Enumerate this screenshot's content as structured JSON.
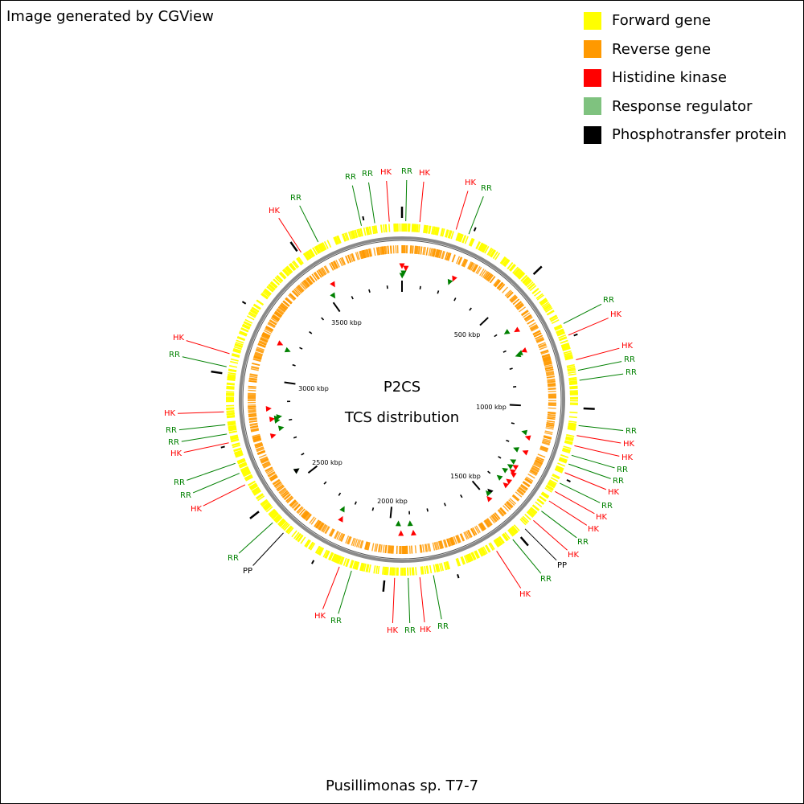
{
  "credit": "Image generated by CGView",
  "legend": [
    {
      "label": "Forward gene",
      "color": "#ffff00"
    },
    {
      "label": "Reverse gene",
      "color": "#ff9900"
    },
    {
      "label": "Histidine kinase",
      "color": "#ff0000"
    },
    {
      "label": "Response regulator",
      "color": "#7fc27f"
    },
    {
      "label": "Phosphotransfer protein",
      "color": "#000000"
    }
  ],
  "center": {
    "title": "P2CS",
    "subtitle": "TCS distribution"
  },
  "footer": "Pusillimonas sp. T7-7",
  "genome_length_kbp": 3880,
  "tick_labels": [
    "500 kbp",
    "1000 kbp",
    "1500 kbp",
    "2000 kbp",
    "2500 kbp",
    "3000 kbp",
    "3500 kbp"
  ],
  "feature_colors": {
    "HK": "#ff0000",
    "RR": "#008000",
    "PP": "#000000"
  },
  "features": [
    {
      "type": "HK",
      "pos": 0
    },
    {
      "type": "RR",
      "pos": 1
    },
    {
      "type": "RR",
      "pos": 7
    },
    {
      "type": "HK",
      "pos": 18
    },
    {
      "type": "RR",
      "pos": 8
    },
    {
      "type": "HK",
      "pos": 250
    },
    {
      "type": "RR",
      "pos": 237
    },
    {
      "type": "RR",
      "pos": 618
    },
    {
      "type": "HK",
      "pos": 635
    },
    {
      "type": "HK",
      "pos": 735
    },
    {
      "type": "RR",
      "pos": 740
    },
    {
      "type": "RR",
      "pos": 745
    },
    {
      "type": "RR",
      "pos": 1130
    },
    {
      "type": "HK",
      "pos": 1150
    },
    {
      "type": "HK",
      "pos": 1218
    },
    {
      "type": "RR",
      "pos": 1222
    },
    {
      "type": "RR",
      "pos": 1282
    },
    {
      "type": "HK",
      "pos": 1300
    },
    {
      "type": "RR",
      "pos": 1310
    },
    {
      "type": "HK",
      "pos": 1325
    },
    {
      "type": "HK",
      "pos": 1335
    },
    {
      "type": "RR",
      "pos": 1340
    },
    {
      "type": "HK",
      "pos": 1372
    },
    {
      "type": "RR",
      "pos": 1385
    },
    {
      "type": "HK",
      "pos": 1395
    },
    {
      "type": "PP",
      "pos": 1468
    },
    {
      "type": "RR",
      "pos": 1480
    },
    {
      "type": "HK",
      "pos": 1495
    },
    {
      "type": "HK",
      "pos": 1887
    },
    {
      "type": "RR",
      "pos": 1900
    },
    {
      "type": "HK",
      "pos": 1945
    },
    {
      "type": "RR",
      "pos": 1958
    },
    {
      "type": "HK",
      "pos": 2230
    },
    {
      "type": "RR",
      "pos": 2245
    },
    {
      "type": "RR",
      "pos": 2545
    },
    {
      "type": "PP",
      "pos": 2545
    },
    {
      "type": "HK",
      "pos": 2742
    },
    {
      "type": "RR",
      "pos": 2768
    },
    {
      "type": "RR",
      "pos": 2808
    },
    {
      "type": "HK",
      "pos": 2818
    },
    {
      "type": "RR",
      "pos": 2820
    },
    {
      "type": "RR",
      "pos": 2825
    },
    {
      "type": "HK",
      "pos": 2868
    },
    {
      "type": "RR",
      "pos": 3160
    },
    {
      "type": "HK",
      "pos": 3175
    },
    {
      "type": "RR",
      "pos": 3520
    },
    {
      "type": "HK",
      "pos": 3548
    }
  ],
  "callouts": [
    {
      "text": "RR",
      "type": "RR"
    },
    {
      "text": "RR",
      "type": "RR"
    },
    {
      "text": "HK",
      "type": "HK"
    },
    {
      "text": "RR",
      "type": "RR"
    },
    {
      "text": "HK",
      "type": "HK"
    },
    {
      "text": "HK",
      "type": "HK"
    },
    {
      "text": "RR",
      "type": "RR"
    },
    {
      "text": "RR",
      "type": "RR"
    },
    {
      "text": "HK",
      "type": "HK"
    },
    {
      "text": "HK",
      "type": "HK"
    },
    {
      "text": "RR",
      "type": "RR"
    },
    {
      "text": "RR",
      "type": "RR"
    },
    {
      "text": "RR",
      "type": "RR"
    },
    {
      "text": "HK",
      "type": "HK"
    },
    {
      "text": "HK",
      "type": "HK"
    },
    {
      "text": "RR",
      "type": "RR"
    },
    {
      "text": "RR",
      "type": "RR"
    },
    {
      "text": "HK",
      "type": "HK"
    },
    {
      "text": "RR",
      "type": "RR"
    },
    {
      "text": "HK",
      "type": "HK"
    },
    {
      "text": "HK",
      "type": "HK"
    },
    {
      "text": "RR",
      "type": "RR"
    },
    {
      "text": "HK",
      "type": "HK"
    },
    {
      "text": "PP",
      "type": "PP"
    },
    {
      "text": "RR",
      "type": "RR"
    },
    {
      "text": "HK",
      "type": "HK"
    },
    {
      "text": "RR",
      "type": "RR"
    },
    {
      "text": "HK",
      "type": "HK"
    },
    {
      "text": "RR",
      "type": "RR"
    },
    {
      "text": "HK",
      "type": "HK"
    },
    {
      "text": "RR",
      "type": "RR"
    },
    {
      "text": "HK",
      "type": "HK"
    },
    {
      "text": "RR",
      "type": "RR"
    },
    {
      "text": "PP",
      "type": "PP"
    },
    {
      "text": "HK",
      "type": "HK"
    },
    {
      "text": "RR",
      "type": "RR"
    },
    {
      "text": "RR",
      "type": "RR"
    },
    {
      "text": "HK",
      "type": "HK"
    },
    {
      "text": "RR",
      "type": "RR"
    },
    {
      "text": "RR",
      "type": "RR"
    },
    {
      "text": "HK",
      "type": "HK"
    },
    {
      "text": "HK",
      "type": "HK"
    },
    {
      "text": "RR",
      "type": "RR"
    },
    {
      "text": "HK",
      "type": "HK"
    },
    {
      "text": "RR",
      "type": "RR"
    }
  ]
}
